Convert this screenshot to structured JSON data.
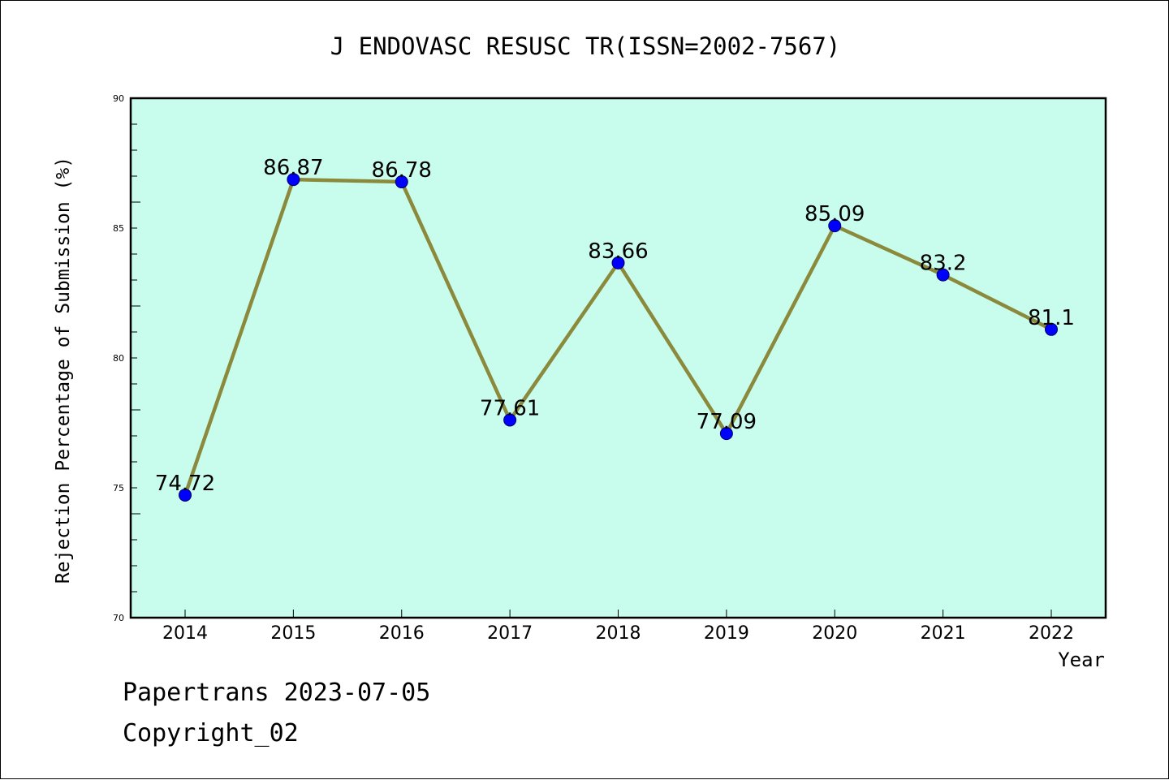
{
  "chart_data": {
    "type": "line",
    "title": "J ENDOVASC RESUSC TR(ISSN=2002-7567)",
    "xlabel": "Year",
    "ylabel": "Rejection Percentage of Submission (%)",
    "categories": [
      "2014",
      "2015",
      "2016",
      "2017",
      "2018",
      "2019",
      "2020",
      "2021",
      "2022"
    ],
    "values": [
      74.72,
      86.87,
      86.78,
      77.61,
      83.66,
      77.09,
      85.09,
      83.2,
      81.1
    ],
    "data_labels": [
      "74.72",
      "86.87",
      "86.78",
      "77.61",
      "83.66",
      "77.09",
      "85.09",
      "83.2",
      "81.1"
    ],
    "ylim": [
      70,
      90
    ],
    "yticks": [
      "70",
      "75",
      "80",
      "85",
      "90"
    ],
    "grid": false,
    "colors": {
      "plot_background": "#c8fcec",
      "line": "#8b8a3c",
      "marker": "#0000ff"
    }
  },
  "footer": {
    "line1": "Papertrans 2023-07-05",
    "line2": "Copyright_02"
  }
}
